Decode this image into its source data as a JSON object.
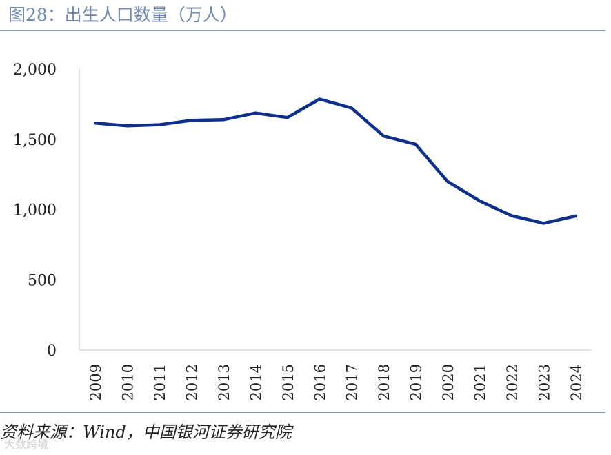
{
  "header": {
    "title": "图28：出生人口数量（万人）"
  },
  "footer": {
    "source": "资料来源：Wind，中国银河证券研究院",
    "watermark": "大数跨境"
  },
  "colors": {
    "title": "#6f86ad",
    "rule": "#8a9cbc",
    "line": "#0e2f8a",
    "axis": "#d9d9d9"
  },
  "chart_data": {
    "type": "line",
    "title": "图28：出生人口数量（万人）",
    "xlabel": "",
    "ylabel": "",
    "x": [
      "2009",
      "2010",
      "2011",
      "2012",
      "2013",
      "2014",
      "2015",
      "2016",
      "2017",
      "2018",
      "2019",
      "2020",
      "2021",
      "2022",
      "2023",
      "2024"
    ],
    "series": [
      {
        "values": [
          1615,
          1596,
          1604,
          1635,
          1640,
          1687,
          1655,
          1786,
          1723,
          1523,
          1465,
          1200,
          1062,
          956,
          902,
          954
        ]
      }
    ],
    "ylim": [
      0,
      2000
    ],
    "yticks": [
      0,
      500,
      1000,
      1500,
      2000
    ],
    "ytick_labels": [
      "0",
      "500",
      "1,000",
      "1,500",
      "2,000"
    ],
    "grid": false,
    "legend": "none"
  }
}
